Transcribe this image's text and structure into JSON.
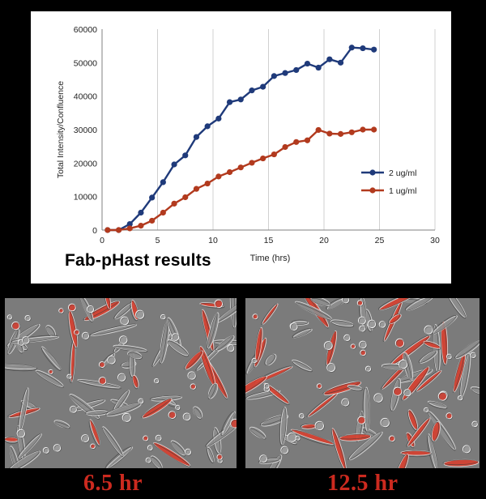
{
  "chart_data": {
    "type": "line",
    "title": "",
    "xlabel": "Time (hrs)",
    "ylabel": "Total Intensity/Confluence",
    "xlim": [
      0,
      30
    ],
    "ylim": [
      0,
      60000
    ],
    "xticks": [
      0,
      5,
      10,
      15,
      20,
      25,
      30
    ],
    "yticks": [
      0,
      10000,
      20000,
      30000,
      40000,
      50000,
      60000
    ],
    "ytick_labels": [
      "0",
      "10000",
      "20000",
      "30000",
      "40000",
      "50000",
      "60000"
    ],
    "xtick_labels": [
      "0",
      "5",
      "10",
      "15",
      "20",
      "25",
      "30"
    ],
    "grid": "vertical",
    "legend_position": "right",
    "series": [
      {
        "name": "2 ug/ml",
        "color": "#1f3a7a",
        "x": [
          0.5,
          1.5,
          2.5,
          3.5,
          4.5,
          5.5,
          6.5,
          7.5,
          8.5,
          9.5,
          10.5,
          11.5,
          12.5,
          13.5,
          14.5,
          15.5,
          16.5,
          17.5,
          18.5,
          19.5,
          20.5,
          21.5,
          22.5,
          23.5,
          24.5
        ],
        "y": [
          0,
          0,
          1800,
          5200,
          9700,
          14300,
          19600,
          22300,
          27800,
          31000,
          33300,
          38200,
          39000,
          41700,
          42800,
          46000,
          46900,
          47800,
          49700,
          48500,
          51000,
          50000,
          54500,
          54300,
          53900
        ]
      },
      {
        "name": "1 ug/ml",
        "color": "#b23a1e",
        "x": [
          0.5,
          1.5,
          2.5,
          3.5,
          4.5,
          5.5,
          6.5,
          7.5,
          8.5,
          9.5,
          10.5,
          11.5,
          12.5,
          13.5,
          14.5,
          15.5,
          16.5,
          17.5,
          18.5,
          19.5,
          20.5,
          21.5,
          22.5,
          23.5,
          24.5
        ],
        "y": [
          0,
          0,
          500,
          1300,
          2800,
          5200,
          7900,
          9800,
          12300,
          13900,
          16000,
          17300,
          18700,
          20100,
          21400,
          22600,
          24800,
          26300,
          26800,
          29900,
          28800,
          28700,
          29200,
          30000,
          30000
        ]
      }
    ]
  },
  "chart_label": "Fab-pHast results",
  "images": [
    {
      "caption": "6.5 hr",
      "name": "micrograph-6-5-hr"
    },
    {
      "caption": "12.5 hr",
      "name": "micrograph-12-5-hr"
    }
  ],
  "colors": {
    "background": "#000000",
    "caption": "#cc2a1f",
    "fluorescence": "#e0392c"
  }
}
